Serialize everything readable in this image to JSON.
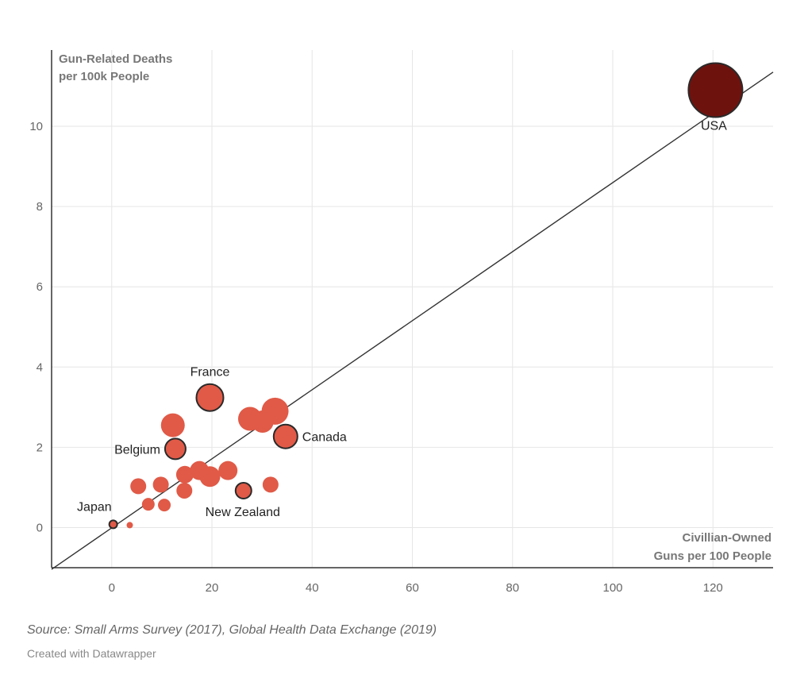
{
  "chart_data": {
    "type": "scatter",
    "title": "",
    "ylabel_lines": [
      "Gun-Related Deaths",
      "per 100k People"
    ],
    "xlabel_lines": [
      "Civillian-Owned",
      "Guns per 100 People"
    ],
    "x_ticks": [
      0,
      20,
      40,
      60,
      80,
      100,
      120
    ],
    "y_ticks": [
      0,
      2,
      4,
      6,
      8,
      10
    ],
    "xlim": [
      -12,
      132
    ],
    "ylim": [
      -1,
      11.9
    ],
    "trendline": {
      "x0": -12,
      "y0": -1.04,
      "x1": 132,
      "y1": 11.35
    },
    "colors": {
      "point": "#e05a47",
      "usa": "#6e120e",
      "outline": "#2a2a2a",
      "grid": "#e6e6e6",
      "axis": "#333333",
      "trend": "#333333"
    },
    "points": [
      {
        "label": "USA",
        "x": 120.5,
        "y": 10.9,
        "size": 34,
        "highlight": true,
        "color": "#6e120e"
      },
      {
        "label": "France",
        "x": 19.6,
        "y": 3.24,
        "size": 17,
        "highlight": true
      },
      {
        "label": "Canada",
        "x": 34.7,
        "y": 2.27,
        "size": 15,
        "highlight": true
      },
      {
        "label": "Belgium",
        "x": 12.7,
        "y": 1.96,
        "size": 13,
        "highlight": true
      },
      {
        "label": "New Zealand",
        "x": 26.3,
        "y": 0.92,
        "size": 10,
        "highlight": true
      },
      {
        "label": "Japan",
        "x": 0.3,
        "y": 0.08,
        "size": 5,
        "highlight": true
      },
      {
        "label": "",
        "x": 32.6,
        "y": 2.9,
        "size": 17
      },
      {
        "label": "",
        "x": 27.6,
        "y": 2.71,
        "size": 15
      },
      {
        "label": "",
        "x": 30.1,
        "y": 2.64,
        "size": 14
      },
      {
        "label": "",
        "x": 12.2,
        "y": 2.55,
        "size": 15
      },
      {
        "label": "",
        "x": 23.2,
        "y": 1.42,
        "size": 12
      },
      {
        "label": "",
        "x": 17.5,
        "y": 1.42,
        "size": 12
      },
      {
        "label": "",
        "x": 14.6,
        "y": 1.32,
        "size": 11
      },
      {
        "label": "",
        "x": 19.6,
        "y": 1.27,
        "size": 13
      },
      {
        "label": "",
        "x": 5.3,
        "y": 1.03,
        "size": 10
      },
      {
        "label": "",
        "x": 9.8,
        "y": 1.07,
        "size": 10
      },
      {
        "label": "",
        "x": 31.7,
        "y": 1.07,
        "size": 10
      },
      {
        "label": "",
        "x": 14.5,
        "y": 0.92,
        "size": 10
      },
      {
        "label": "",
        "x": 7.3,
        "y": 0.58,
        "size": 8
      },
      {
        "label": "",
        "x": 10.5,
        "y": 0.56,
        "size": 8
      },
      {
        "label": "",
        "x": 3.6,
        "y": 0.06,
        "size": 4
      }
    ],
    "label_positions": {
      "USA": "below",
      "France": "above",
      "Canada": "right",
      "Belgium": "left",
      "New Zealand": "below",
      "Japan": "above-left"
    }
  },
  "footer": {
    "source": "Source: Small Arms Survey (2017), Global Health Data Exchange (2019)",
    "credit": "Created with Datawrapper"
  }
}
